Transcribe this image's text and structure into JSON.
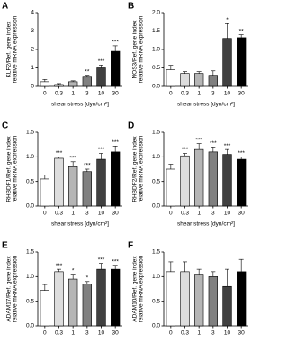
{
  "chart_data": [
    {
      "type": "bar",
      "panel": "A",
      "ylabel": [
        "KLF2/Ref. gene index",
        "relative mRNA expression"
      ],
      "xlabel": "shear stress [dyn/cm²]",
      "categories": [
        "0",
        "0.3",
        "1",
        "3",
        "10",
        "30"
      ],
      "values": [
        0.25,
        0.1,
        0.25,
        0.5,
        1.0,
        1.9
      ],
      "errors": [
        0.12,
        0.05,
        0.05,
        0.1,
        0.15,
        0.3
      ],
      "sig": [
        "",
        "",
        "",
        "**",
        "***",
        "***"
      ],
      "colors": [
        "#ffffff",
        "#dddddd",
        "#b5b5b5",
        "#808080",
        "#404040",
        "#000000"
      ],
      "ylim": [
        0,
        4
      ],
      "yticks": [
        0,
        1,
        2,
        3,
        4
      ]
    },
    {
      "type": "bar",
      "panel": "B",
      "ylabel": [
        "NOS3/Ref. gene index",
        "relative mRNA expression"
      ],
      "xlabel": "shear stress [dyn/cm²]",
      "categories": [
        "0",
        "0.3",
        "1",
        "3",
        "10",
        "30"
      ],
      "values": [
        0.45,
        0.35,
        0.35,
        0.3,
        1.3,
        1.32
      ],
      "errors": [
        0.12,
        0.05,
        0.05,
        0.12,
        0.4,
        0.08
      ],
      "sig": [
        "",
        "",
        "",
        "",
        "*",
        "**"
      ],
      "colors": [
        "#ffffff",
        "#dddddd",
        "#b5b5b5",
        "#808080",
        "#404040",
        "#000000"
      ],
      "ylim": [
        0,
        2
      ],
      "yticks": [
        {
          "value": 0,
          "label": "0.0"
        },
        0.5,
        {
          "value": 1,
          "label": "1.0"
        },
        1.5,
        {
          "value": 2,
          "label": "2.0"
        }
      ]
    },
    {
      "type": "bar",
      "panel": "C",
      "ylabel": [
        "RHBDF1/Ref. gene index",
        "relative mRNA expression"
      ],
      "xlabel": "shear stress [dyn/cm²]",
      "categories": [
        "0",
        "0.3",
        "1",
        "3",
        "10",
        "30"
      ],
      "values": [
        0.55,
        0.97,
        0.8,
        0.7,
        0.95,
        1.1
      ],
      "errors": [
        0.08,
        0.03,
        0.1,
        0.05,
        0.12,
        0.12
      ],
      "sig": [
        "",
        "***",
        "***",
        "***",
        "***",
        "***"
      ],
      "colors": [
        "#ffffff",
        "#dddddd",
        "#b5b5b5",
        "#808080",
        "#404040",
        "#000000"
      ],
      "ylim": [
        0,
        1.5
      ],
      "yticks": [
        {
          "value": 0,
          "label": "0.0"
        },
        0.5,
        {
          "value": 1,
          "label": "1.0"
        },
        1.5
      ]
    },
    {
      "type": "bar",
      "panel": "D",
      "ylabel": [
        "RHBDF2/Ref. gene index",
        "relative mRNA expression"
      ],
      "xlabel": "shear stress [dyn/cm²]",
      "categories": [
        "0",
        "0.3",
        "1",
        "3",
        "10",
        "30"
      ],
      "values": [
        0.75,
        1.02,
        1.15,
        1.1,
        1.05,
        0.95
      ],
      "errors": [
        0.1,
        0.05,
        0.12,
        0.1,
        0.1,
        0.05
      ],
      "sig": [
        "",
        "***",
        "***",
        "***",
        "***",
        "***"
      ],
      "colors": [
        "#ffffff",
        "#dddddd",
        "#b5b5b5",
        "#808080",
        "#404040",
        "#000000"
      ],
      "ylim": [
        0,
        1.5
      ],
      "yticks": [
        {
          "value": 0,
          "label": "0.0"
        },
        0.5,
        {
          "value": 1,
          "label": "1.0"
        },
        1.5
      ]
    },
    {
      "type": "bar",
      "panel": "E",
      "ylabel": [
        "ADAM17/Ref. gene index",
        "relative mRNA expression"
      ],
      "categories": [
        "0",
        "0.3",
        "1",
        "3",
        "10",
        "30"
      ],
      "values": [
        0.72,
        1.1,
        0.95,
        0.85,
        1.15,
        1.15
      ],
      "errors": [
        0.12,
        0.05,
        0.1,
        0.05,
        0.12,
        0.08
      ],
      "sig": [
        "",
        "***",
        "*",
        "*",
        "***",
        "***"
      ],
      "colors": [
        "#ffffff",
        "#dddddd",
        "#b5b5b5",
        "#808080",
        "#404040",
        "#000000"
      ],
      "ylim": [
        0,
        1.5
      ],
      "yticks": [
        {
          "value": 0,
          "label": "0.0"
        },
        0.5,
        {
          "value": 1,
          "label": "1.0"
        },
        1.5
      ]
    },
    {
      "type": "bar",
      "panel": "F",
      "ylabel": [
        "ADAM10/Ref. gene index",
        "relative mRNA expression"
      ],
      "categories": [
        "0",
        "0.3",
        "1",
        "3",
        "10",
        "30"
      ],
      "values": [
        1.1,
        1.1,
        1.05,
        1.0,
        0.8,
        1.1
      ],
      "errors": [
        0.2,
        0.2,
        0.1,
        0.1,
        0.35,
        0.25
      ],
      "sig": [
        "",
        "",
        "",
        "",
        "",
        ""
      ],
      "colors": [
        "#ffffff",
        "#dddddd",
        "#b5b5b5",
        "#808080",
        "#404040",
        "#000000"
      ],
      "ylim": [
        0,
        1.5
      ],
      "yticks": [
        {
          "value": 0,
          "label": "0.0"
        },
        0.5,
        {
          "value": 1,
          "label": "1.0"
        },
        1.5
      ]
    }
  ]
}
